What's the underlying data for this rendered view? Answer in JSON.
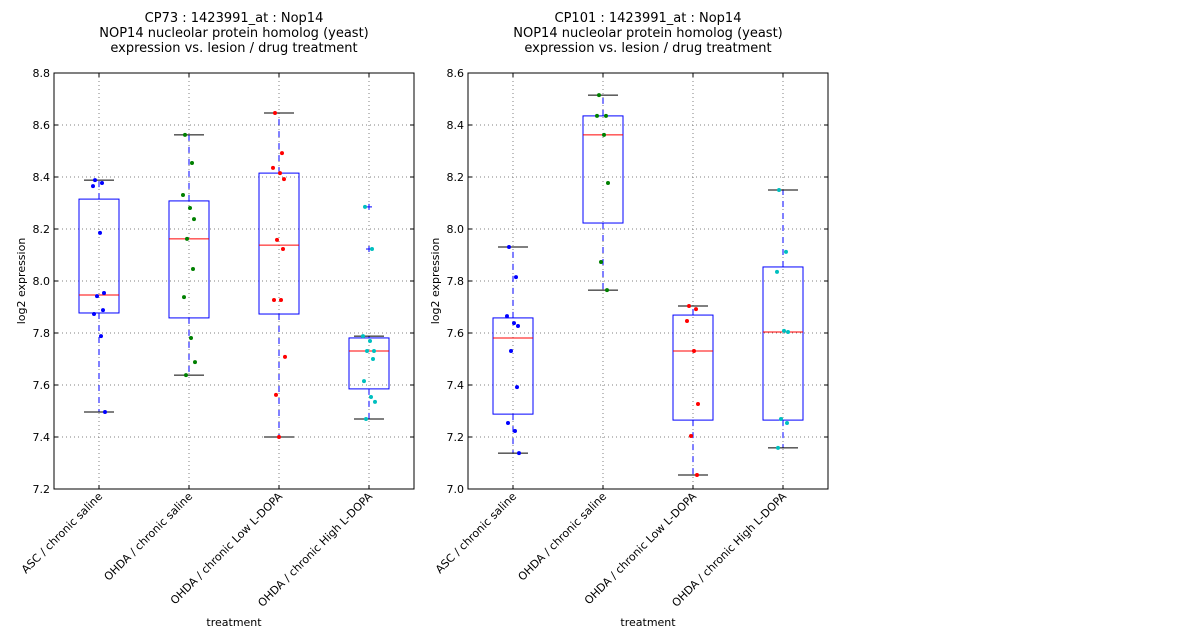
{
  "chart_data": [
    {
      "type": "box",
      "title": [
        "CP73 : 1423991_at : Nop14",
        "NOP14 nucleolar protein homolog (yeast)",
        "expression vs. lesion / drug treatment"
      ],
      "xlabel": "treatment",
      "ylabel": "log2 expression",
      "ylim": [
        7.2,
        8.8
      ],
      "yticks": [
        7.2,
        7.4,
        7.6,
        7.8,
        8.0,
        8.2,
        8.4,
        8.6,
        8.8
      ],
      "ytick_labels": [
        "7.2",
        "7.4",
        "7.6",
        "7.8",
        "8.0",
        "8.2",
        "8.4",
        "8.6",
        "8.8"
      ],
      "grid": true,
      "categories": [
        "ASC / chronic saline",
        "OHDA / chronic saline",
        "OHDA / chronic Low L-DOPA",
        "OHDA / chronic High L-DOPA"
      ],
      "groups": [
        {
          "color": "#0000ff",
          "q1": 7.877,
          "median": 7.946,
          "q3": 8.315,
          "whisker_low": 7.496,
          "whisker_high": 8.388,
          "fliers": [],
          "points": [
            8.388,
            8.377,
            8.365,
            8.185,
            7.954,
            7.942,
            7.888,
            7.873,
            7.788,
            7.496
          ]
        },
        {
          "color": "#008000",
          "q1": 7.858,
          "median": 8.162,
          "q3": 8.308,
          "whisker_low": 7.638,
          "whisker_high": 8.562,
          "fliers": [],
          "points": [
            8.562,
            8.454,
            8.331,
            8.281,
            8.238,
            8.162,
            8.046,
            7.938,
            7.781,
            7.688,
            7.638
          ]
        },
        {
          "color": "#ff0000",
          "q1": 7.873,
          "median": 8.138,
          "q3": 8.415,
          "whisker_low": 7.4,
          "whisker_high": 8.646,
          "fliers": [],
          "points": [
            8.646,
            8.492,
            8.435,
            8.415,
            8.392,
            8.158,
            8.123,
            7.927,
            7.927,
            7.708,
            7.562,
            7.4
          ]
        },
        {
          "color": "#00bfbf",
          "q1": 7.585,
          "median": 7.731,
          "q3": 7.781,
          "whisker_low": 7.469,
          "whisker_high": 7.788,
          "fliers": [
            8.285,
            8.123
          ],
          "points": [
            8.285,
            8.123,
            7.788,
            7.769,
            7.731,
            7.731,
            7.7,
            7.615,
            7.554,
            7.535,
            7.469
          ]
        }
      ]
    },
    {
      "type": "box",
      "title": [
        "CP101 : 1423991_at : Nop14",
        "NOP14 nucleolar protein homolog (yeast)",
        "expression vs. lesion / drug treatment"
      ],
      "xlabel": "treatment",
      "ylabel": "log2 expression",
      "ylim": [
        7.0,
        8.6
      ],
      "yticks": [
        7.0,
        7.2,
        7.4,
        7.6,
        7.8,
        8.0,
        8.2,
        8.4,
        8.6
      ],
      "ytick_labels": [
        "7.0",
        "7.2",
        "7.4",
        "7.6",
        "7.8",
        "8.0",
        "8.2",
        "8.4",
        "8.6"
      ],
      "grid": true,
      "categories": [
        "ASC / chronic saline",
        "OHDA / chronic saline",
        "OHDA / chronic Low L-DOPA",
        "OHDA / chronic High L-DOPA"
      ],
      "groups": [
        {
          "color": "#0000ff",
          "q1": 7.288,
          "median": 7.581,
          "q3": 7.658,
          "whisker_low": 7.138,
          "whisker_high": 7.931,
          "fliers": [],
          "points": [
            7.931,
            7.815,
            7.665,
            7.638,
            7.627,
            7.531,
            7.392,
            7.254,
            7.223,
            7.138
          ]
        },
        {
          "color": "#008000",
          "q1": 8.023,
          "median": 8.362,
          "q3": 8.435,
          "whisker_low": 7.765,
          "whisker_high": 8.515,
          "fliers": [],
          "points": [
            8.515,
            8.435,
            8.435,
            8.362,
            8.177,
            7.873,
            7.765
          ]
        },
        {
          "color": "#ff0000",
          "q1": 7.265,
          "median": 7.531,
          "q3": 7.669,
          "whisker_low": 7.054,
          "whisker_high": 7.704,
          "fliers": [],
          "points": [
            7.704,
            7.692,
            7.646,
            7.531,
            7.327,
            7.204,
            7.054
          ]
        },
        {
          "color": "#00bfbf",
          "q1": 7.265,
          "median": 7.604,
          "q3": 7.854,
          "whisker_low": 7.158,
          "whisker_high": 8.15,
          "fliers": [],
          "points": [
            8.15,
            7.912,
            7.835,
            7.608,
            7.604,
            7.269,
            7.254,
            7.158
          ]
        }
      ]
    }
  ],
  "style": {
    "box_color": "#0000ff",
    "median_color": "#ff0000",
    "whisker_cap_color": "#000000",
    "flier_color": "#0000ff",
    "grid_color": "#808080"
  }
}
